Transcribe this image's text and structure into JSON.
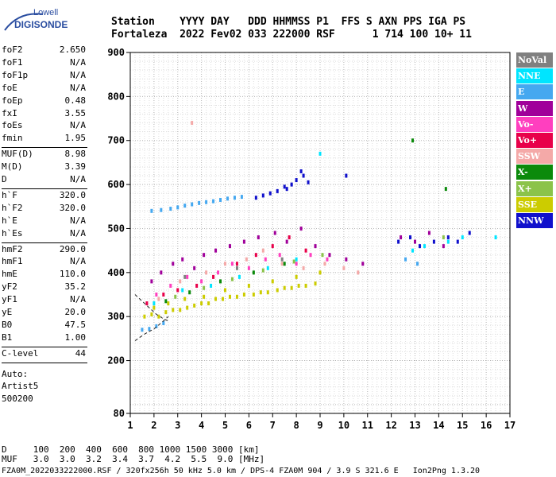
{
  "logo": {
    "line1": "Lowell",
    "line2": "DIGISONDE"
  },
  "header": {
    "line1": "Station    YYYY DAY   DDD HHMMSS P1  FFS S AXN PPS IGA PS",
    "line2": "Fortaleza  2022 Fev02 033 222000 RSF      1 714 100 10+ 11"
  },
  "params": {
    "group1": [
      {
        "k": "foF2",
        "v": "2.650"
      },
      {
        "k": "foF1",
        "v": "N/A"
      },
      {
        "k": "foF1p",
        "v": "N/A"
      },
      {
        "k": "foE",
        "v": "N/A"
      },
      {
        "k": "foEp",
        "v": "0.48"
      },
      {
        "k": "fxI",
        "v": "3.55"
      },
      {
        "k": "foEs",
        "v": "N/A"
      },
      {
        "k": "fmin",
        "v": "1.95"
      }
    ],
    "group2": [
      {
        "k": "MUF(D)",
        "v": "8.98"
      },
      {
        "k": "M(D)",
        "v": "3.39"
      },
      {
        "k": "D",
        "v": "N/A"
      }
    ],
    "group3": [
      {
        "k": "h`F",
        "v": "320.0"
      },
      {
        "k": "h`F2",
        "v": "320.0"
      },
      {
        "k": "h`E",
        "v": "N/A"
      },
      {
        "k": "h`Es",
        "v": "N/A"
      }
    ],
    "group4": [
      {
        "k": "hmF2",
        "v": "290.0"
      },
      {
        "k": "hmF1",
        "v": "N/A"
      },
      {
        "k": "hmE",
        "v": "110.0"
      },
      {
        "k": "yF2",
        "v": "35.2"
      },
      {
        "k": "yF1",
        "v": "N/A"
      },
      {
        "k": "yE",
        "v": "20.0"
      },
      {
        "k": "B0",
        "v": "47.5"
      },
      {
        "k": "B1",
        "v": "1.00"
      }
    ],
    "group5": [
      {
        "k": "C-level",
        "v": "44"
      }
    ],
    "auto_label": "Auto:",
    "auto_name": "Artist5",
    "auto_code": "500200"
  },
  "legend": [
    {
      "label": "NoVal",
      "color": "#808080"
    },
    {
      "label": "NNE",
      "color": "#00e5ff"
    },
    {
      "label": "E",
      "color": "#45a8f0"
    },
    {
      "label": "W",
      "color": "#a0009a"
    },
    {
      "label": "Vo-",
      "color": "#ff3fbf"
    },
    {
      "label": "Vo+",
      "color": "#e8004a"
    },
    {
      "label": "SSW",
      "color": "#f4a9a8"
    },
    {
      "label": "X-",
      "color": "#0b8a0b"
    },
    {
      "label": "X+",
      "color": "#8bc34a"
    },
    {
      "label": "SSE",
      "color": "#cccc00"
    },
    {
      "label": "NNW",
      "color": "#1010cc"
    }
  ],
  "footer": {
    "line1": "D     100  200  400  600  800 1000 1500 3000 [km]",
    "line2": "MUF   3.0  3.0  3.2  3.4  3.7  4.2  5.5  9.0 [MHz]",
    "line3": "FZA0M_2022033222000.RSF / 320fx256h 50 kHz 5.0 km / DPS-4 FZA0M 904 / 3.9 S 321.6 E   Ion2Png 1.3.20"
  },
  "chart_data": {
    "type": "scatter",
    "title": "",
    "xlabel": "",
    "ylabel": "",
    "xlim": [
      1,
      17
    ],
    "ylim": [
      80,
      900
    ],
    "x_ticks": [
      1,
      2,
      3,
      4,
      5,
      6,
      7,
      8,
      9,
      10,
      11,
      12,
      13,
      14,
      15,
      16,
      17
    ],
    "y_ticks": [
      80,
      200,
      300,
      400,
      500,
      600,
      700,
      800,
      900
    ],
    "grid": true,
    "legend_position": "right",
    "series": [
      {
        "name": "SSE",
        "color": "#cccc00",
        "points": [
          [
            1.6,
            300
          ],
          [
            1.9,
            305
          ],
          [
            2.2,
            300
          ],
          [
            2.5,
            310
          ],
          [
            2.8,
            315
          ],
          [
            3.1,
            315
          ],
          [
            3.4,
            320
          ],
          [
            3.7,
            325
          ],
          [
            4.0,
            330
          ],
          [
            4.3,
            330
          ],
          [
            4.6,
            340
          ],
          [
            4.9,
            340
          ],
          [
            5.2,
            345
          ],
          [
            5.5,
            345
          ],
          [
            5.8,
            350
          ],
          [
            6.2,
            350
          ],
          [
            6.5,
            355
          ],
          [
            6.8,
            355
          ],
          [
            7.2,
            360
          ],
          [
            7.5,
            365
          ],
          [
            7.8,
            365
          ],
          [
            8.1,
            370
          ],
          [
            8.4,
            370
          ],
          [
            8.8,
            375
          ],
          [
            2.0,
            320
          ],
          [
            2.6,
            330
          ],
          [
            3.3,
            340
          ],
          [
            4.1,
            345
          ],
          [
            5.0,
            360
          ],
          [
            6.0,
            370
          ],
          [
            7.0,
            380
          ],
          [
            8.0,
            390
          ],
          [
            9.0,
            400
          ]
        ]
      },
      {
        "name": "E",
        "color": "#45a8f0",
        "points": [
          [
            1.5,
            270
          ],
          [
            1.8,
            272
          ],
          [
            2.1,
            278
          ],
          [
            2.4,
            285
          ],
          [
            1.9,
            540
          ],
          [
            2.3,
            542
          ],
          [
            2.7,
            545
          ],
          [
            3.0,
            548
          ],
          [
            3.3,
            552
          ],
          [
            3.6,
            555
          ],
          [
            3.9,
            558
          ],
          [
            4.2,
            560
          ],
          [
            4.5,
            562
          ],
          [
            4.8,
            565
          ],
          [
            5.1,
            568
          ],
          [
            5.4,
            570
          ],
          [
            5.7,
            572
          ],
          [
            12.6,
            430
          ],
          [
            13.1,
            420
          ]
        ]
      },
      {
        "name": "W",
        "color": "#a0009a",
        "points": [
          [
            1.9,
            380
          ],
          [
            2.3,
            400
          ],
          [
            2.8,
            420
          ],
          [
            3.2,
            430
          ],
          [
            3.7,
            410
          ],
          [
            4.1,
            440
          ],
          [
            4.6,
            450
          ],
          [
            5.2,
            460
          ],
          [
            5.8,
            470
          ],
          [
            6.4,
            480
          ],
          [
            7.1,
            490
          ],
          [
            7.6,
            470
          ],
          [
            8.2,
            500
          ],
          [
            8.8,
            460
          ],
          [
            9.4,
            440
          ],
          [
            10.1,
            430
          ],
          [
            10.8,
            420
          ],
          [
            12.4,
            480
          ],
          [
            13.0,
            470
          ],
          [
            13.6,
            490
          ],
          [
            14.2,
            460
          ]
        ]
      },
      {
        "name": "Vo-",
        "color": "#ff3fbf",
        "points": [
          [
            2.1,
            350
          ],
          [
            2.7,
            370
          ],
          [
            3.4,
            390
          ],
          [
            4.0,
            380
          ],
          [
            4.7,
            400
          ],
          [
            5.3,
            420
          ],
          [
            6.0,
            410
          ],
          [
            6.7,
            430
          ],
          [
            7.3,
            440
          ],
          [
            8.0,
            420
          ],
          [
            8.6,
            440
          ],
          [
            9.3,
            430
          ]
        ]
      },
      {
        "name": "Vo+",
        "color": "#e8004a",
        "points": [
          [
            1.7,
            330
          ],
          [
            2.4,
            350
          ],
          [
            3.0,
            360
          ],
          [
            3.8,
            370
          ],
          [
            4.5,
            390
          ],
          [
            5.5,
            420
          ],
          [
            6.3,
            440
          ],
          [
            7.0,
            460
          ],
          [
            7.7,
            480
          ],
          [
            8.4,
            450
          ]
        ]
      },
      {
        "name": "SSW",
        "color": "#f4a9a8",
        "points": [
          [
            2.2,
            340
          ],
          [
            3.1,
            380
          ],
          [
            3.6,
            740
          ],
          [
            4.2,
            400
          ],
          [
            5.0,
            420
          ],
          [
            5.9,
            430
          ],
          [
            6.6,
            450
          ],
          [
            7.4,
            420
          ],
          [
            8.3,
            410
          ],
          [
            9.2,
            420
          ],
          [
            10.0,
            410
          ],
          [
            10.6,
            400
          ]
        ]
      },
      {
        "name": "NNE",
        "color": "#00e5ff",
        "points": [
          [
            2.0,
            330
          ],
          [
            3.2,
            360
          ],
          [
            4.4,
            370
          ],
          [
            5.6,
            390
          ],
          [
            6.8,
            410
          ],
          [
            8.0,
            430
          ],
          [
            9.0,
            670
          ],
          [
            12.9,
            450
          ],
          [
            13.4,
            460
          ],
          [
            14.4,
            470
          ],
          [
            15.0,
            480
          ],
          [
            16.4,
            480
          ]
        ]
      },
      {
        "name": "X-",
        "color": "#0b8a0b",
        "points": [
          [
            2.5,
            335
          ],
          [
            3.5,
            355
          ],
          [
            4.8,
            380
          ],
          [
            6.2,
            400
          ],
          [
            7.5,
            420
          ],
          [
            12.9,
            700
          ],
          [
            14.3,
            590
          ]
        ]
      },
      {
        "name": "X+",
        "color": "#8bc34a",
        "points": [
          [
            2.9,
            345
          ],
          [
            4.1,
            365
          ],
          [
            5.3,
            385
          ],
          [
            6.6,
            405
          ],
          [
            7.9,
            425
          ],
          [
            9.1,
            440
          ],
          [
            14.2,
            480
          ]
        ]
      },
      {
        "name": "NNW",
        "color": "#1010cc",
        "points": [
          [
            6.3,
            570
          ],
          [
            6.6,
            575
          ],
          [
            6.9,
            580
          ],
          [
            7.2,
            585
          ],
          [
            7.5,
            595
          ],
          [
            7.8,
            600
          ],
          [
            8.0,
            610
          ],
          [
            8.3,
            620
          ],
          [
            8.5,
            605
          ],
          [
            8.2,
            630
          ],
          [
            7.6,
            590
          ],
          [
            10.1,
            620
          ],
          [
            12.3,
            470
          ],
          [
            12.8,
            480
          ],
          [
            13.2,
            460
          ],
          [
            13.8,
            470
          ],
          [
            14.4,
            480
          ],
          [
            14.8,
            470
          ],
          [
            15.3,
            490
          ]
        ]
      },
      {
        "name": "NoVal",
        "color": "#808080",
        "points": [
          [
            3.3,
            390
          ],
          [
            5.5,
            410
          ],
          [
            7.4,
            430
          ]
        ]
      }
    ],
    "model_curves": [
      [
        [
          1.2,
          350
        ],
        [
          1.5,
          335
        ],
        [
          1.8,
          320
        ],
        [
          2.1,
          305
        ],
        [
          2.4,
          295
        ],
        [
          2.6,
          290
        ]
      ],
      [
        [
          1.2,
          245
        ],
        [
          1.6,
          260
        ],
        [
          2.0,
          272
        ],
        [
          2.4,
          290
        ],
        [
          2.6,
          300
        ]
      ]
    ]
  }
}
